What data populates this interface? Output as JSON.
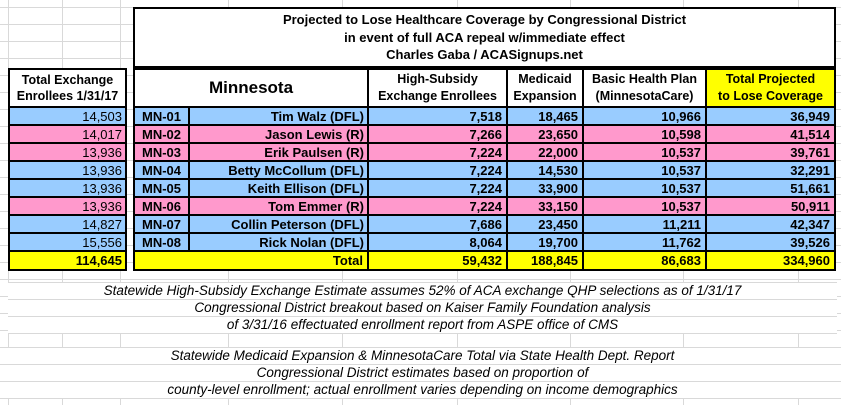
{
  "colors": {
    "blue": "#99CCFF",
    "pink": "#FF99CC",
    "yellow": "#FFFF00",
    "border": "#000000",
    "gridline": "#D9D9D9"
  },
  "title": {
    "line1": "Projected to Lose Healthcare Coverage by Congressional District",
    "line2": "in event of full ACA repeal w/immediate effect",
    "line3": "Charles Gaba / ACASignups.net"
  },
  "left_panel": {
    "header_line1": "Total Exchange",
    "header_line2": "Enrollees 1/31/17",
    "values": [
      "14,503",
      "14,017",
      "13,936",
      "13,936",
      "13,936",
      "13,936",
      "14,827",
      "15,556"
    ],
    "total": "114,645"
  },
  "table": {
    "state_label": "Minnesota",
    "col_headers": {
      "exchange_line1": "High-Subsidy",
      "exchange_line2": "Exchange Enrollees",
      "medicaid_line1": "Medicaid",
      "medicaid_line2": "Expansion",
      "bhp_line1": "Basic Health Plan",
      "bhp_line2": "(MinnesotaCare)",
      "total_line1": "Total Projected",
      "total_line2": "to Lose Coverage"
    },
    "rows": [
      {
        "district": "MN-01",
        "rep": "Tim Walz (DFL)",
        "party": "DFL",
        "exchange": "7,518",
        "medicaid": "18,465",
        "bhp": "10,966",
        "total": "36,949"
      },
      {
        "district": "MN-02",
        "rep": "Jason Lewis (R)",
        "party": "R",
        "exchange": "7,266",
        "medicaid": "23,650",
        "bhp": "10,598",
        "total": "41,514"
      },
      {
        "district": "MN-03",
        "rep": "Erik Paulsen (R)",
        "party": "R",
        "exchange": "7,224",
        "medicaid": "22,000",
        "bhp": "10,537",
        "total": "39,761"
      },
      {
        "district": "MN-04",
        "rep": "Betty McCollum (DFL)",
        "party": "DFL",
        "exchange": "7,224",
        "medicaid": "14,530",
        "bhp": "10,537",
        "total": "32,291"
      },
      {
        "district": "MN-05",
        "rep": "Keith Ellison (DFL)",
        "party": "DFL",
        "exchange": "7,224",
        "medicaid": "33,900",
        "bhp": "10,537",
        "total": "51,661"
      },
      {
        "district": "MN-06",
        "rep": "Tom Emmer (R)",
        "party": "R",
        "exchange": "7,224",
        "medicaid": "33,150",
        "bhp": "10,537",
        "total": "50,911"
      },
      {
        "district": "MN-07",
        "rep": "Collin Peterson (DFL)",
        "party": "DFL",
        "exchange": "7,686",
        "medicaid": "23,450",
        "bhp": "11,211",
        "total": "42,347"
      },
      {
        "district": "MN-08",
        "rep": "Rick Nolan (DFL)",
        "party": "DFL",
        "exchange": "8,064",
        "medicaid": "19,700",
        "bhp": "11,762",
        "total": "39,526"
      }
    ],
    "total_row": {
      "label": "Total",
      "exchange": "59,432",
      "medicaid": "188,845",
      "bhp": "86,683",
      "total": "334,960"
    }
  },
  "notes": {
    "block1": {
      "line1": "Statewide High-Subsidy Exchange Estimate assumes 52% of ACA exchange QHP selections as of 1/31/17",
      "line2": "Congressional District breakout based on Kaiser Family Foundation analysis",
      "line3": "of 3/31/16 effectuated enrollment report from ASPE office of CMS"
    },
    "block2": {
      "line1": "Statewide Medicaid Expansion & MinnesotaCare Total via State Health Dept. Report",
      "line2": "Congressional District estimates based on proportion of",
      "line3": "county-level enrollment; actual enrollment varies depending on income demographics"
    }
  }
}
